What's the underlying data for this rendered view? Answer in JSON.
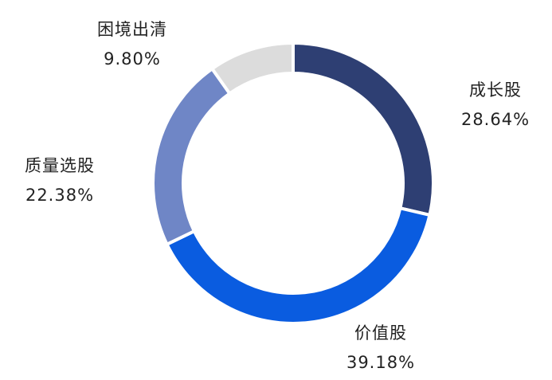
{
  "chart_data": {
    "type": "pie",
    "donut": true,
    "start_angle": "12 o'clock",
    "direction": "clockwise",
    "slices": [
      {
        "label": "成长股",
        "value": 28.64,
        "value_label": "28.64%",
        "color": "#2e3f73"
      },
      {
        "label": "价值股",
        "value": 39.18,
        "value_label": "39.18%",
        "color": "#0a5ce0"
      },
      {
        "label": "质量选股",
        "value": 22.38,
        "value_label": "22.38%",
        "color": "#6f86c6"
      },
      {
        "label": "困境出清",
        "value": 9.8,
        "value_label": "9.80%",
        "color": "#dcdcdc"
      }
    ]
  }
}
